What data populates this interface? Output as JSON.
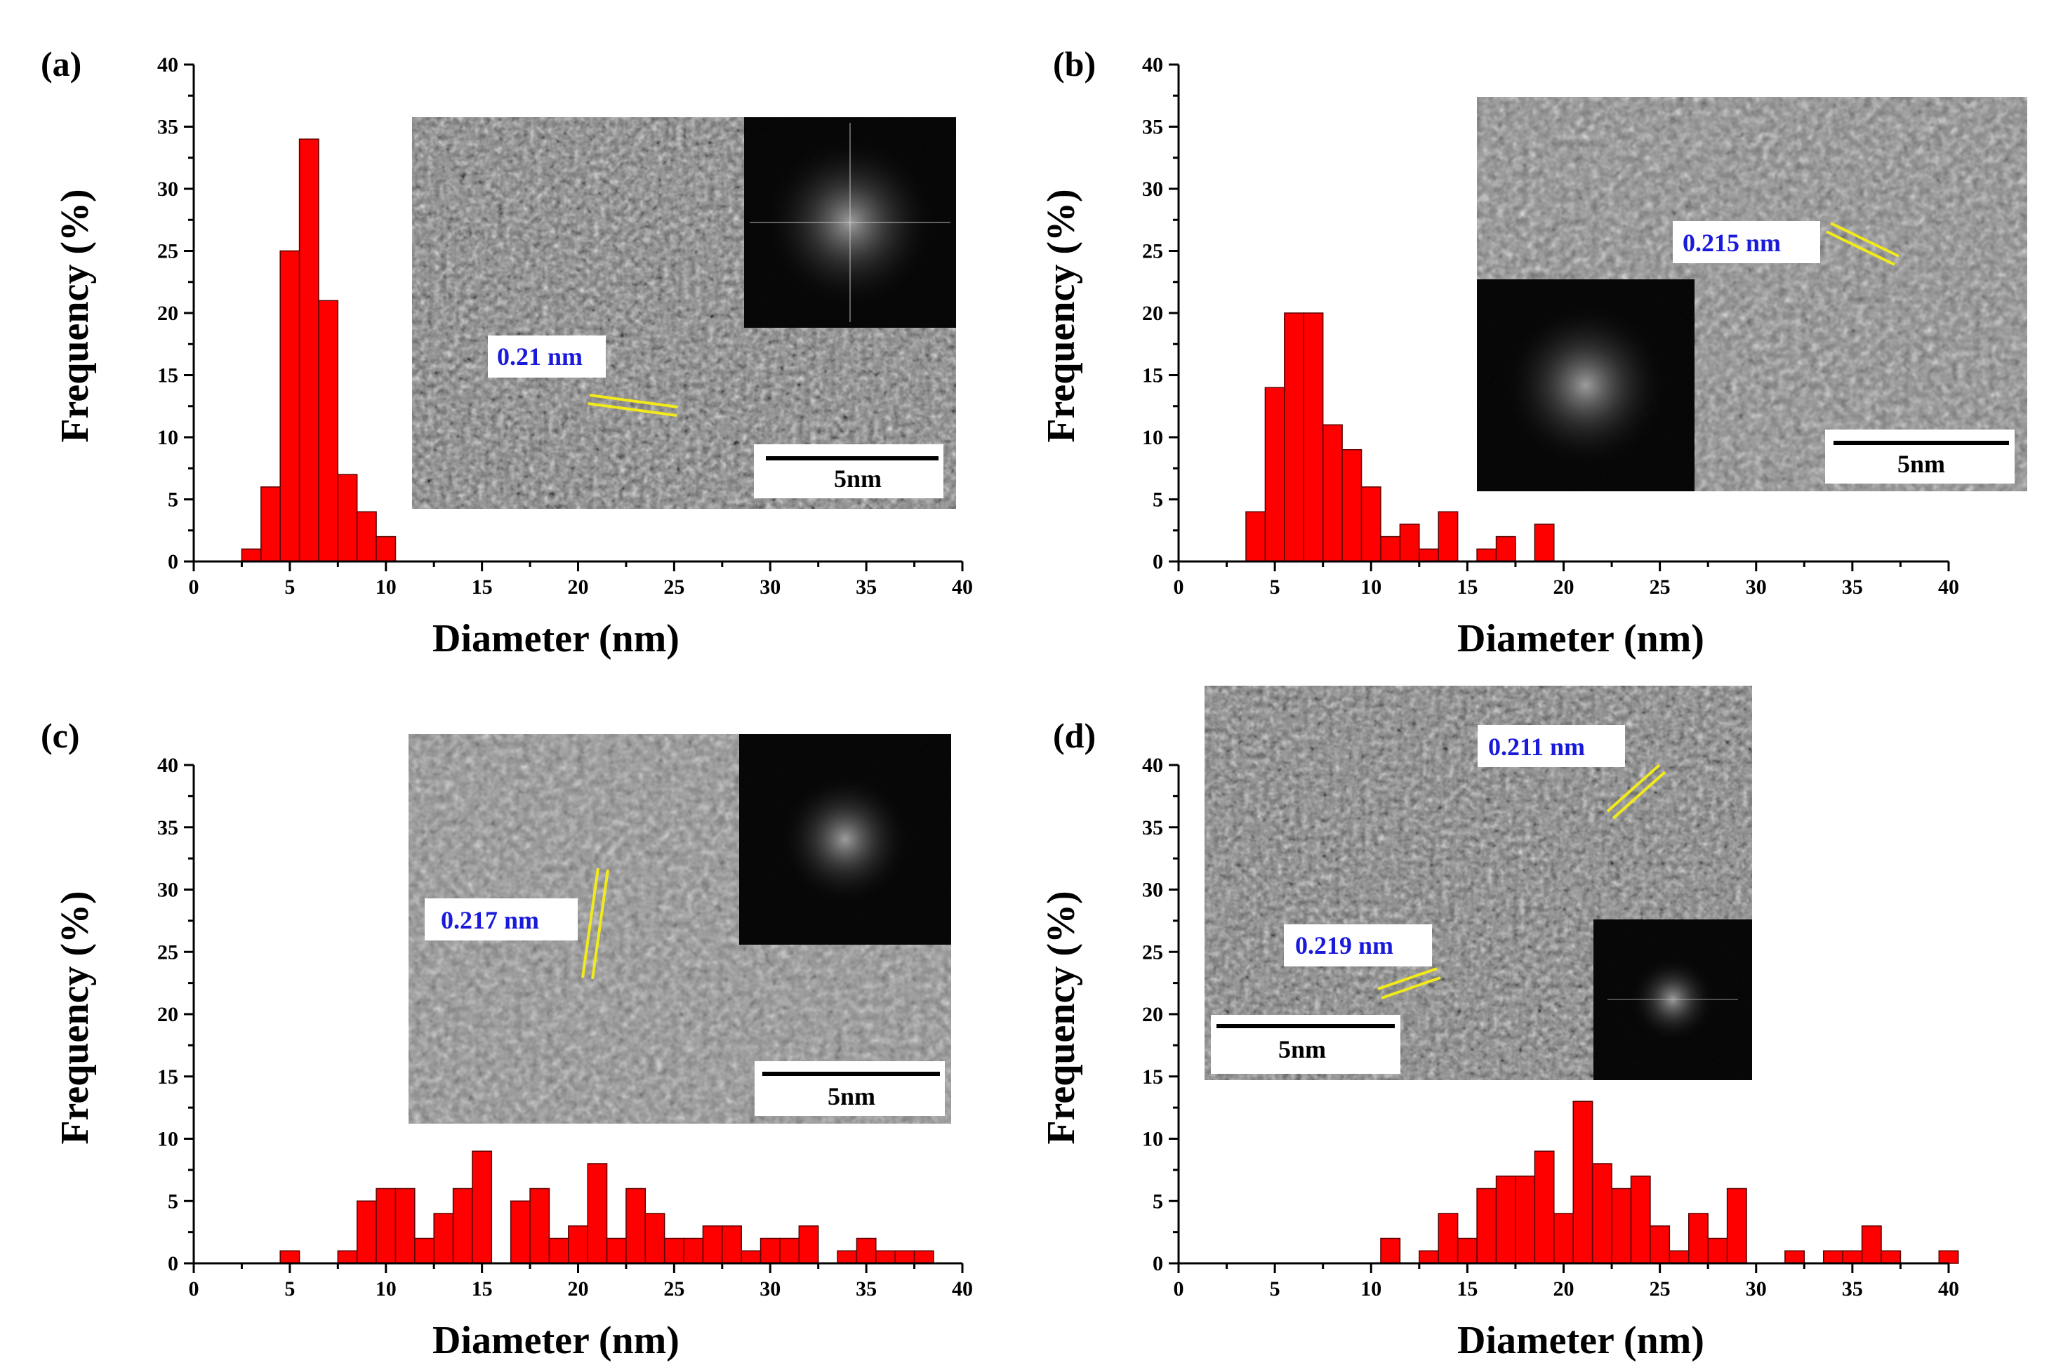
{
  "chart_data": [
    {
      "panel": "(a)",
      "type": "bar",
      "xlabel": "Diameter (nm)",
      "ylabel": "Frequency (%)",
      "xlim": [
        0,
        40
      ],
      "ylim": [
        0,
        40
      ],
      "xticks": [
        0,
        5,
        10,
        15,
        20,
        25,
        30,
        35,
        40
      ],
      "yticks": [
        0,
        5,
        10,
        15,
        20,
        25,
        30,
        35,
        40
      ],
      "bin_width": 1,
      "bins": [
        {
          "x": 3,
          "value": 1
        },
        {
          "x": 4,
          "value": 6
        },
        {
          "x": 5,
          "value": 25
        },
        {
          "x": 6,
          "value": 34
        },
        {
          "x": 7,
          "value": 21
        },
        {
          "x": 8,
          "value": 7
        },
        {
          "x": 9,
          "value": 4
        },
        {
          "x": 10,
          "value": 2
        }
      ],
      "inset": {
        "measurements": [
          "0.21 nm"
        ],
        "scale_bar": "5nm"
      }
    },
    {
      "panel": "(b)",
      "type": "bar",
      "xlabel": "Diameter (nm)",
      "ylabel": "Frequency (%)",
      "xlim": [
        0,
        40
      ],
      "ylim": [
        0,
        40
      ],
      "xticks": [
        0,
        5,
        10,
        15,
        20,
        25,
        30,
        35,
        40
      ],
      "yticks": [
        0,
        5,
        10,
        15,
        20,
        25,
        30,
        35,
        40
      ],
      "bin_width": 1,
      "bins": [
        {
          "x": 4,
          "value": 4
        },
        {
          "x": 5,
          "value": 14
        },
        {
          "x": 6,
          "value": 20
        },
        {
          "x": 7,
          "value": 20
        },
        {
          "x": 8,
          "value": 11
        },
        {
          "x": 9,
          "value": 9
        },
        {
          "x": 10,
          "value": 6
        },
        {
          "x": 11,
          "value": 2
        },
        {
          "x": 12,
          "value": 3
        },
        {
          "x": 13,
          "value": 1
        },
        {
          "x": 14,
          "value": 4
        },
        {
          "x": 16,
          "value": 1
        },
        {
          "x": 17,
          "value": 2
        },
        {
          "x": 19,
          "value": 3
        }
      ],
      "inset": {
        "measurements": [
          "0.215 nm"
        ],
        "scale_bar": "5nm"
      }
    },
    {
      "panel": "(c)",
      "type": "bar",
      "xlabel": "Diameter (nm)",
      "ylabel": "Frequency (%)",
      "xlim": [
        0,
        40
      ],
      "ylim": [
        0,
        40
      ],
      "xticks": [
        0,
        5,
        10,
        15,
        20,
        25,
        30,
        35,
        40
      ],
      "yticks": [
        0,
        5,
        10,
        15,
        20,
        25,
        30,
        35,
        40
      ],
      "bin_width": 1,
      "bins": [
        {
          "x": 5,
          "value": 1
        },
        {
          "x": 8,
          "value": 1
        },
        {
          "x": 9,
          "value": 5
        },
        {
          "x": 10,
          "value": 6
        },
        {
          "x": 11,
          "value": 6
        },
        {
          "x": 12,
          "value": 2
        },
        {
          "x": 13,
          "value": 4
        },
        {
          "x": 14,
          "value": 6
        },
        {
          "x": 15,
          "value": 9
        },
        {
          "x": 17,
          "value": 5
        },
        {
          "x": 18,
          "value": 6
        },
        {
          "x": 19,
          "value": 2
        },
        {
          "x": 20,
          "value": 3
        },
        {
          "x": 21,
          "value": 8
        },
        {
          "x": 22,
          "value": 2
        },
        {
          "x": 23,
          "value": 6
        },
        {
          "x": 24,
          "value": 4
        },
        {
          "x": 25,
          "value": 2
        },
        {
          "x": 26,
          "value": 2
        },
        {
          "x": 27,
          "value": 3
        },
        {
          "x": 28,
          "value": 3
        },
        {
          "x": 29,
          "value": 1
        },
        {
          "x": 30,
          "value": 2
        },
        {
          "x": 31,
          "value": 2
        },
        {
          "x": 32,
          "value": 3
        },
        {
          "x": 34,
          "value": 1
        },
        {
          "x": 35,
          "value": 2
        },
        {
          "x": 36,
          "value": 1
        },
        {
          "x": 37,
          "value": 1
        },
        {
          "x": 38,
          "value": 1
        }
      ],
      "inset": {
        "measurements": [
          "0.217 nm"
        ],
        "scale_bar": "5nm"
      }
    },
    {
      "panel": "(d)",
      "type": "bar",
      "xlabel": "Diameter (nm)",
      "ylabel": "Frequency (%)",
      "xlim": [
        0,
        40
      ],
      "ylim": [
        0,
        40
      ],
      "xticks": [
        0,
        5,
        10,
        15,
        20,
        25,
        30,
        35,
        40
      ],
      "yticks": [
        0,
        5,
        10,
        15,
        20,
        25,
        30,
        35,
        40
      ],
      "bin_width": 1,
      "bins": [
        {
          "x": 11,
          "value": 2
        },
        {
          "x": 13,
          "value": 1
        },
        {
          "x": 14,
          "value": 4
        },
        {
          "x": 15,
          "value": 2
        },
        {
          "x": 16,
          "value": 6
        },
        {
          "x": 17,
          "value": 7
        },
        {
          "x": 18,
          "value": 7
        },
        {
          "x": 19,
          "value": 9
        },
        {
          "x": 20,
          "value": 4
        },
        {
          "x": 21,
          "value": 13
        },
        {
          "x": 22,
          "value": 8
        },
        {
          "x": 23,
          "value": 6
        },
        {
          "x": 24,
          "value": 7
        },
        {
          "x": 25,
          "value": 3
        },
        {
          "x": 26,
          "value": 1
        },
        {
          "x": 27,
          "value": 4
        },
        {
          "x": 28,
          "value": 2
        },
        {
          "x": 29,
          "value": 6
        },
        {
          "x": 32,
          "value": 1
        },
        {
          "x": 34,
          "value": 1
        },
        {
          "x": 35,
          "value": 1
        },
        {
          "x": 36,
          "value": 3
        },
        {
          "x": 37,
          "value": 1
        },
        {
          "x": 40,
          "value": 1
        }
      ],
      "inset": {
        "measurements": [
          "0.211 nm",
          "0.219 nm"
        ],
        "scale_bar": "5nm"
      }
    }
  ],
  "colors": {
    "bar_fill": "#ff0000",
    "bar_edge": "#5a0000",
    "lattice_line": "#f2ea1a",
    "measurement_text": "#1a1adb",
    "fft_background": "#080808"
  }
}
